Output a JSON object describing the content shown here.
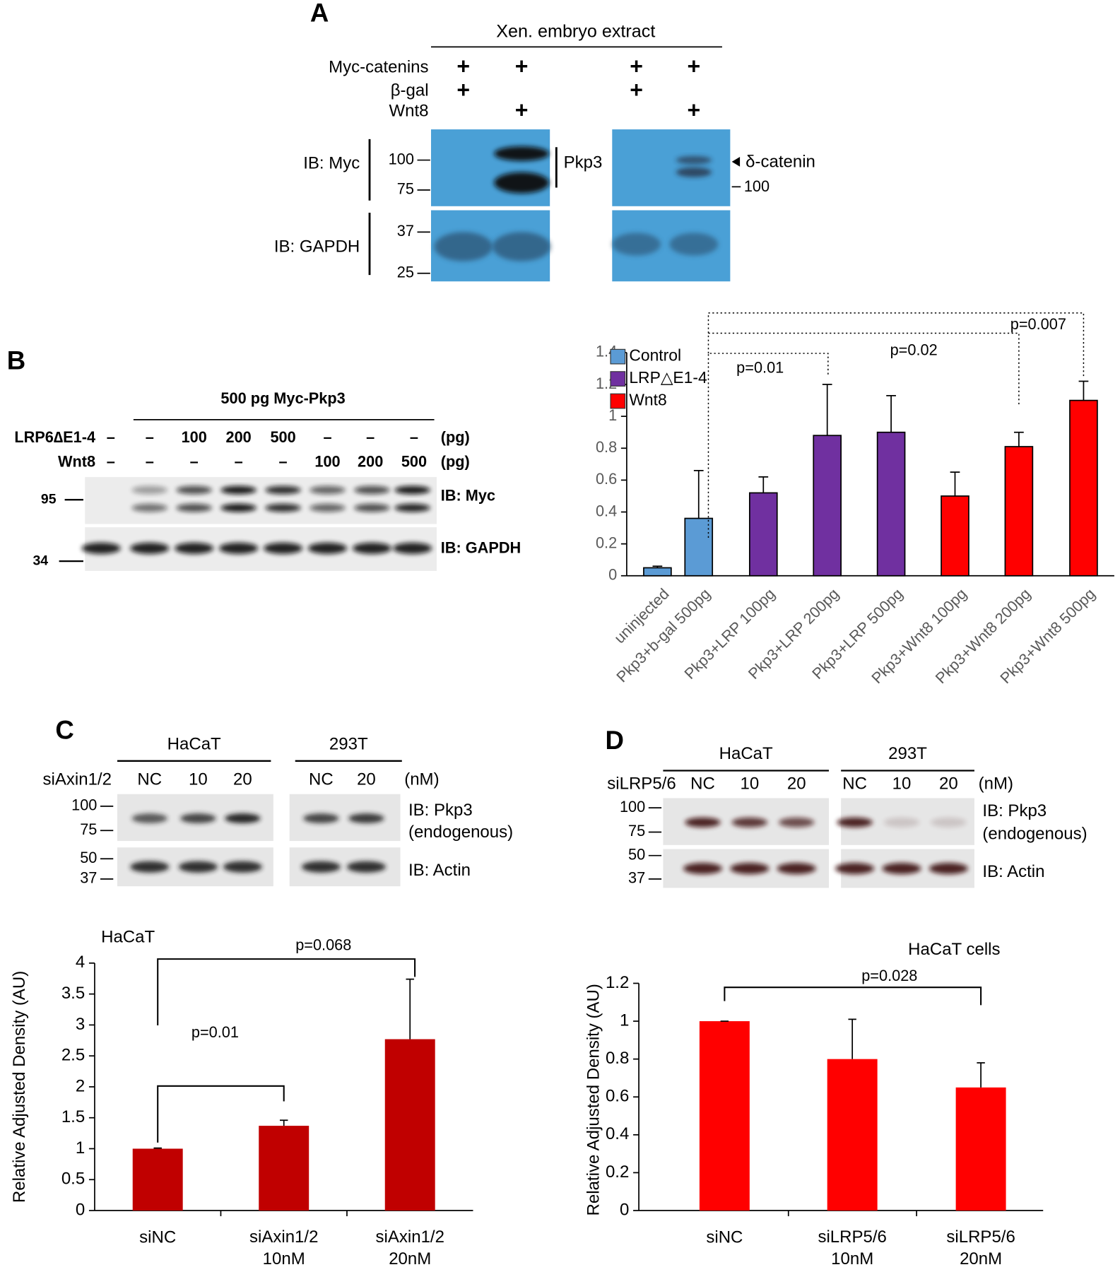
{
  "panel_a": {
    "label": "A",
    "extract": "Xen. embryo extract",
    "conditions": [
      {
        "name": "Myc-catenins",
        "lanes": [
          "+",
          "+",
          "+",
          "+"
        ]
      },
      {
        "name": "β-gal",
        "lanes": [
          "+",
          null,
          "+",
          null
        ]
      },
      {
        "name": "Wnt8",
        "lanes": [
          null,
          "+",
          null,
          "+"
        ]
      }
    ],
    "blots": [
      "IB: Myc",
      "IB: GAPDH"
    ],
    "markers": [
      "100",
      "75",
      "37",
      "25"
    ],
    "pkp3": "Pkp3",
    "delta": "δ-catenin",
    "delta_marker": "100"
  },
  "panel_b": {
    "label": "B",
    "header": "500 pg Myc-Pkp3",
    "conditions": [
      {
        "name": "LRP6∆E1-4",
        "lanes": [
          "–",
          "–",
          "100",
          "200",
          "500",
          "–",
          "–",
          "–"
        ],
        "unit": "(pg)"
      },
      {
        "name": "Wnt8",
        "lanes": [
          "–",
          "–",
          "–",
          "–",
          "–",
          "100",
          "200",
          "500"
        ],
        "unit": "(pg)"
      }
    ],
    "markers": [
      "95",
      "34"
    ],
    "blots": [
      "IB: Myc",
      "IB: GAPDH"
    ]
  },
  "panel_c": {
    "label": "C",
    "groups": [
      "HaCaT",
      "293T"
    ],
    "condition": "siAxin1/2",
    "lanes": [
      "NC",
      "10",
      "20",
      "NC",
      "20"
    ],
    "unit": "(nM)",
    "markers": [
      "100",
      "75",
      "50",
      "37"
    ],
    "blots": [
      "IB: Pkp3",
      "(endogenous)",
      "IB: Actin"
    ]
  },
  "panel_d": {
    "label": "D",
    "groups": [
      "HaCaT",
      "293T"
    ],
    "condition": "siLRP5/6",
    "lanes": [
      "NC",
      "10",
      "20",
      "NC",
      "10",
      "20"
    ],
    "unit": "(nM)",
    "markers": [
      "100",
      "75",
      "50",
      "37"
    ],
    "blots": [
      "IB: Pkp3",
      "(endogenous)",
      "IB: Actin"
    ]
  },
  "chart_data": [
    {
      "type": "bar",
      "categories": [
        "uninjected",
        "Pkp3+b-gal 500pg",
        "Pkp3+LRP 100pg",
        "Pkp3+LRP 200pg",
        "Pkp3+LRP 500pg",
        "Pkp3+Wnt8 100pg",
        "Pkp3+Wnt8 200pg",
        "Pkp3+Wnt8 500pg"
      ],
      "series": [
        {
          "name": "Control",
          "color": "#5b9bd5",
          "values": [
            0.05,
            0.36,
            null,
            null,
            null,
            null,
            null,
            null
          ],
          "errors": [
            0.01,
            0.3,
            null,
            null,
            null,
            null,
            null,
            null
          ]
        },
        {
          "name": "LRP△E1-4",
          "color": "#7030a0",
          "values": [
            null,
            null,
            0.52,
            0.88,
            0.9,
            null,
            null,
            null
          ],
          "errors": [
            null,
            null,
            0.1,
            0.32,
            0.23,
            null,
            null,
            null
          ]
        },
        {
          "name": "Wnt8",
          "color": "#ff0000",
          "values": [
            null,
            null,
            null,
            null,
            null,
            0.5,
            0.81,
            1.1
          ],
          "errors": [
            null,
            null,
            null,
            null,
            null,
            0.15,
            0.09,
            0.12
          ]
        }
      ],
      "ylim": [
        0,
        1.4
      ],
      "yticks": [
        0,
        0.2,
        0.4,
        0.6,
        0.8,
        1,
        1.2,
        1.4
      ],
      "legend": "top-left",
      "annotations": [
        "p=0.01",
        "p=0.02",
        "p=0.007"
      ]
    },
    {
      "type": "bar",
      "title": "HaCaT",
      "ylabel": "Relative Adjusted Density (AU)",
      "categories": [
        "siNC",
        "siAxin1/2\n10nM",
        "siAxin1/2\n20nM"
      ],
      "values": [
        1,
        1.37,
        2.77
      ],
      "errors": [
        0.01,
        0.09,
        0.97
      ],
      "color": "#c00000",
      "ylim": [
        0,
        4
      ],
      "yticks": [
        0,
        0.5,
        1,
        1.5,
        2,
        2.5,
        3,
        3.5,
        4
      ],
      "annotations": [
        "p=0.01",
        "p=0.068"
      ]
    },
    {
      "type": "bar",
      "title": "HaCaT cells",
      "ylabel": "Relative Adjusted Density (AU)",
      "categories": [
        "siNC",
        "siLRP5/6\n10nM",
        "siLRP5/6\n20nM"
      ],
      "values": [
        1,
        0.8,
        0.65
      ],
      "errors": [
        0,
        0.21,
        0.13
      ],
      "color": "#ff0000",
      "ylim": [
        0,
        1.2
      ],
      "yticks": [
        0,
        0.2,
        0.4,
        0.6,
        0.8,
        1,
        1.2
      ],
      "annotations": [
        "p=0.028"
      ]
    }
  ]
}
